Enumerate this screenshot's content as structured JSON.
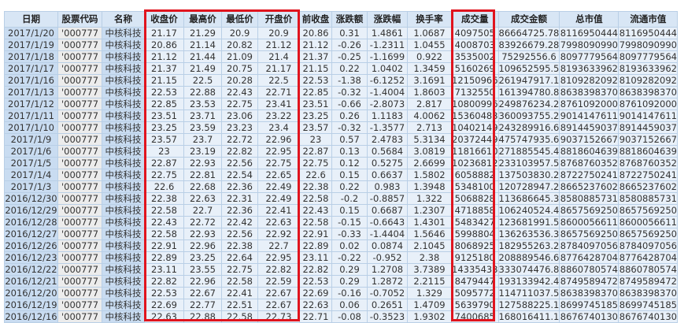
{
  "sheet": {
    "columns": [
      "日期",
      "股票代码",
      "名称",
      "收盘价",
      "最高价",
      "最低价",
      "开盘价",
      "前收盘",
      "涨跌额",
      "涨跌幅",
      "换手率",
      "成交量",
      "成交金额",
      "总市值",
      "流通市值"
    ],
    "rows": [
      [
        "2017/1/20",
        "'000777",
        "中核科技",
        "21.17",
        "21.29",
        "20.9",
        "20.9",
        "20.86",
        "0.31",
        "1.4861",
        "1.0687",
        "4097505",
        "86664725.78",
        "8116950444",
        "8116950444"
      ],
      [
        "2017/1/19",
        "'000777",
        "中核科技",
        "20.86",
        "21.14",
        "20.82",
        "21.12",
        "21.12",
        "-0.26",
        "-1.2311",
        "1.0455",
        "4008703",
        "83926679.28",
        "7998090990",
        "7998090990"
      ],
      [
        "2017/1/18",
        "'000777",
        "中核科技",
        "21.12",
        "21.44",
        "21.09",
        "21.4",
        "21.37",
        "-0.25",
        "-1.1699",
        "0.922",
        "3535002",
        "75292556.6",
        "8097779564",
        "8097779564"
      ],
      [
        "2017/1/17",
        "'000777",
        "中核科技",
        "21.37",
        "21.49",
        "20.75",
        "21.17",
        "21.15",
        "0.22",
        "1.0402",
        "1.3459",
        "5160269",
        "109652595.5",
        "8193633962",
        "8193633962"
      ],
      [
        "2017/1/16",
        "'000777",
        "中核科技",
        "21.15",
        "22.5",
        "20.28",
        "22.5",
        "22.53",
        "-1.38",
        "-6.1252",
        "3.1691",
        "12150966",
        "261947917.1",
        "8109282092",
        "8109282092"
      ],
      [
        "2017/1/13",
        "'000777",
        "中核科技",
        "22.53",
        "22.88",
        "22.43",
        "22.71",
        "22.85",
        "-0.32",
        "-1.4004",
        "1.8603",
        "7132550",
        "161394780.8",
        "8638398370",
        "8638398370"
      ],
      [
        "2017/1/12",
        "'000777",
        "中核科技",
        "22.85",
        "23.53",
        "22.75",
        "23.41",
        "23.51",
        "-0.66",
        "-2.8073",
        "2.817",
        "10800996",
        "249876234.2",
        "8761092000",
        "8761092000"
      ],
      [
        "2017/1/11",
        "'000777",
        "中核科技",
        "23.51",
        "23.71",
        "23.06",
        "23.22",
        "23.25",
        "0.26",
        "1.1183",
        "4.0062",
        "15360483",
        "360093755.2",
        "9014147611",
        "9014147611"
      ],
      [
        "2017/1/10",
        "'000777",
        "中核科技",
        "23.25",
        "23.59",
        "23.23",
        "23.4",
        "23.57",
        "-0.32",
        "-1.3577",
        "2.713",
        "10402149",
        "243289916.6",
        "8914459037",
        "8914459037"
      ],
      [
        "2017/1/9",
        "'000777",
        "中核科技",
        "23.57",
        "23.7",
        "22.72",
        "22.96",
        "23",
        "0.57",
        "2.4783",
        "5.3134",
        "20372449",
        "475747935.6",
        "9037152667",
        "9037152667"
      ],
      [
        "2017/1/6",
        "'000777",
        "中核科技",
        "23",
        "23.19",
        "22.82",
        "22.95",
        "22.87",
        "0.13",
        "0.5684",
        "3.0819",
        "11816610",
        "271885545.4",
        "8818604639",
        "8818604639"
      ],
      [
        "2017/1/5",
        "'000777",
        "中核科技",
        "22.87",
        "22.93",
        "22.56",
        "22.75",
        "22.75",
        "0.12",
        "0.5275",
        "2.6699",
        "10236812",
        "233103957.5",
        "8768760352",
        "8768760352"
      ],
      [
        "2017/1/4",
        "'000777",
        "中核科技",
        "22.75",
        "22.81",
        "22.54",
        "22.65",
        "22.6",
        "0.15",
        "0.6637",
        "1.5802",
        "6058882",
        "137503830.2",
        "8722750241",
        "8722750241"
      ],
      [
        "2017/1/3",
        "'000777",
        "中核科技",
        "22.6",
        "22.68",
        "22.36",
        "22.49",
        "22.38",
        "0.22",
        "0.983",
        "1.3948",
        "5348100",
        "120728947.2",
        "8665237602",
        "8665237602"
      ],
      [
        "2016/12/30",
        "'000777",
        "中核科技",
        "22.38",
        "22.63",
        "22.31",
        "22.49",
        "22.58",
        "-0.2",
        "-0.8857",
        "1.322",
        "5068828",
        "113686645.3",
        "8580885731",
        "8580885731"
      ],
      [
        "2016/12/29",
        "'000777",
        "中核科技",
        "22.58",
        "22.7",
        "22.36",
        "22.41",
        "22.43",
        "0.15",
        "0.6687",
        "1.2307",
        "4718858",
        "106240524.4",
        "8657569250",
        "8657569250"
      ],
      [
        "2016/12/28",
        "'000777",
        "中核科技",
        "22.43",
        "22.72",
        "22.42",
        "22.63",
        "22.58",
        "-0.15",
        "-0.6643",
        "1.4301",
        "5483427",
        "123681991.5",
        "8600056611",
        "8600056611"
      ],
      [
        "2016/12/27",
        "'000777",
        "中核科技",
        "22.58",
        "22.93",
        "22.56",
        "22.92",
        "22.91",
        "-0.33",
        "-1.4404",
        "1.5646",
        "5998804",
        "136263536.3",
        "8657569250",
        "8657569250"
      ],
      [
        "2016/12/26",
        "'000777",
        "中核科技",
        "22.91",
        "22.96",
        "22.38",
        "22.7",
        "22.89",
        "0.02",
        "0.0874",
        "2.1045",
        "8068925",
        "182955263.2",
        "8784097056",
        "8784097056"
      ],
      [
        "2016/12/23",
        "'000777",
        "中核科技",
        "22.89",
        "23.25",
        "22.64",
        "22.95",
        "23.11",
        "-0.22",
        "-0.952",
        "2.38",
        "9125180",
        "208889546.6",
        "8776428704",
        "8776428704"
      ],
      [
        "2016/12/22",
        "'000777",
        "中核科技",
        "23.11",
        "23.55",
        "22.75",
        "22.82",
        "22.82",
        "0.29",
        "1.2708",
        "3.7389",
        "14335433",
        "333074476.8",
        "8860780574",
        "8860780574"
      ],
      [
        "2016/12/21",
        "'000777",
        "中核科技",
        "22.82",
        "22.96",
        "22.58",
        "22.59",
        "22.53",
        "0.29",
        "1.2872",
        "2.2115",
        "8479447",
        "193133942.4",
        "8749589472",
        "8749589472"
      ],
      [
        "2016/12/20",
        "'000777",
        "中核科技",
        "22.53",
        "22.67",
        "22.41",
        "22.67",
        "22.69",
        "-0.16",
        "-0.7052",
        "1.329",
        "5095772",
        "114711037.5",
        "8638398370",
        "8638398370"
      ],
      [
        "2016/12/19",
        "'000777",
        "中核科技",
        "22.69",
        "22.77",
        "22.51",
        "22.67",
        "22.63",
        "0.06",
        "0.2651",
        "1.4709",
        "5639790",
        "127588225.1",
        "8699745185",
        "8699745185"
      ],
      [
        "2016/12/16",
        "'000777",
        "中核科技",
        "22.63",
        "22.88",
        "22.58",
        "22.73",
        "22.71",
        "-0.08",
        "-0.3523",
        "1.9302",
        "7400685",
        "168016411.1",
        "8676740130",
        "8676740130"
      ]
    ]
  },
  "highlight_color": "#e0141e"
}
